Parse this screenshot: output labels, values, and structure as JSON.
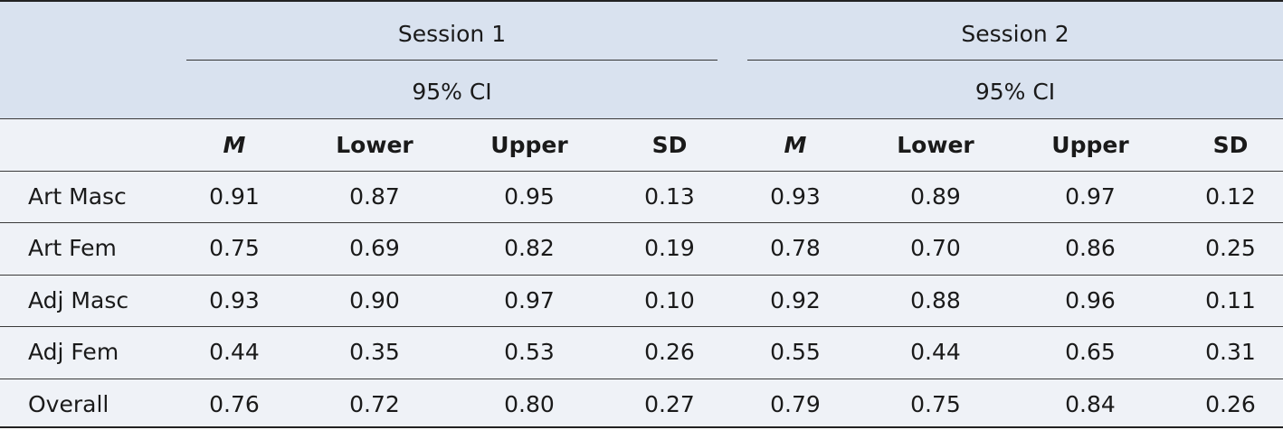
{
  "header": {
    "session_1": "Session 1",
    "session_2": "Session 2",
    "ci_1": "95% CI",
    "ci_2": "95% CI",
    "columns": [
      "",
      "M",
      "Lower",
      "Upper",
      "SD",
      "M",
      "Lower",
      "Upper",
      "SD"
    ]
  },
  "rows": [
    {
      "label": "Art Masc",
      "values": [
        "0.91",
        "0.87",
        "0.95",
        "0.13",
        "0.93",
        "0.89",
        "0.97",
        "0.12"
      ]
    },
    {
      "label": "Art Fem",
      "values": [
        "0.75",
        "0.69",
        "0.82",
        "0.19",
        "0.78",
        "0.70",
        "0.86",
        "0.25"
      ]
    },
    {
      "label": "Adj Masc",
      "values": [
        "0.93",
        "0.90",
        "0.97",
        "0.10",
        "0.92",
        "0.88",
        "0.96",
        "0.11"
      ]
    },
    {
      "label": "Adj Fem",
      "values": [
        "0.44",
        "0.35",
        "0.53",
        "0.26",
        "0.55",
        "0.44",
        "0.65",
        "0.31"
      ]
    },
    {
      "label": "Overall",
      "values": [
        "0.76",
        "0.72",
        "0.80",
        "0.27",
        "0.79",
        "0.75",
        "0.84",
        "0.26"
      ]
    }
  ]
}
